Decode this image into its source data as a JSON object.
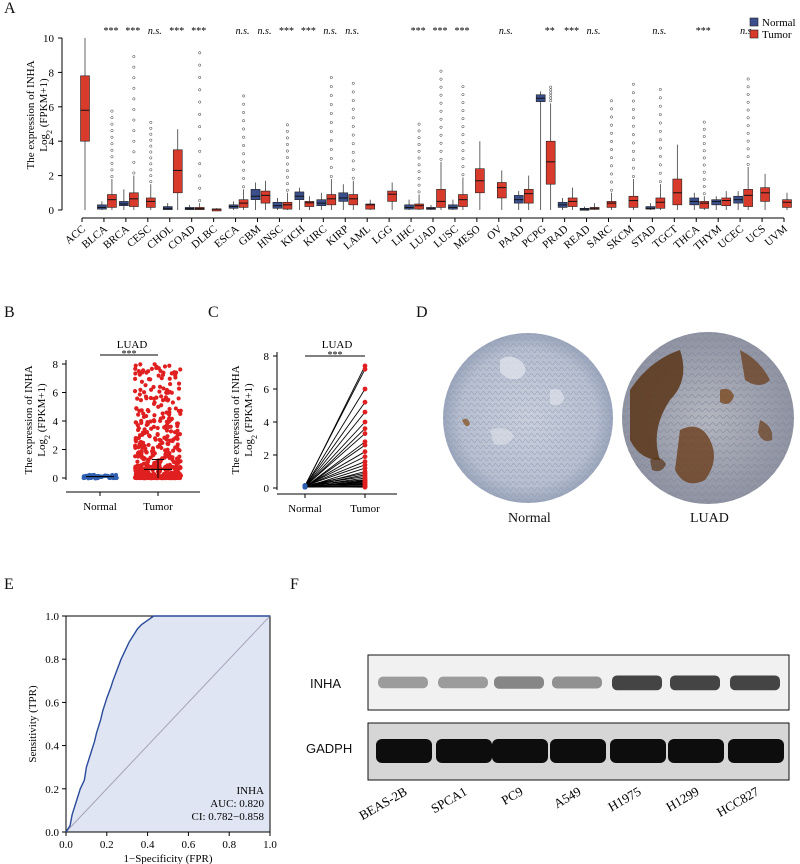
{
  "panel_labels": {
    "a": "A",
    "b": "B",
    "c": "C",
    "d": "D",
    "e": "E",
    "f": "F"
  },
  "chart_data": [
    {
      "panel": "A",
      "type": "box",
      "ylabel_line1": "The expression of INHA",
      "ylabel_line2": "Log",
      "ylabel_sub": "2",
      "ylabel_tail": "(FPKM+1)",
      "ylim": [
        0,
        10
      ],
      "yticks": [
        0,
        2,
        4,
        6,
        8,
        10
      ],
      "legend": {
        "position": "top-right",
        "entries": [
          {
            "name": "Normal",
            "color": "#3b4f8c"
          },
          {
            "name": "Tumor",
            "color": "#d83a2c"
          }
        ]
      },
      "categories": [
        "ACC",
        "BLCA",
        "BRCA",
        "CESC",
        "CHOL",
        "COAD",
        "DLBC",
        "ESCA",
        "GBM",
        "HNSC",
        "KICH",
        "KIRC",
        "KIRP",
        "LAML",
        "LGG",
        "LIHC",
        "LUAD",
        "LUSC",
        "MESO",
        "OV",
        "PAAD",
        "PCPG",
        "PRAD",
        "READ",
        "SARC",
        "SKCM",
        "STAD",
        "TGCT",
        "THCA",
        "THYM",
        "UCEC",
        "UCS",
        "UVM"
      ],
      "significance": [
        "",
        "***",
        "***",
        "n.s.",
        "***",
        "***",
        "",
        "n.s.",
        "n.s.",
        "***",
        "***",
        "n.s.",
        "n.s.",
        "",
        "",
        "***",
        "***",
        "***",
        "",
        "n.s.",
        "",
        "**",
        "***",
        "n.s.",
        "",
        "",
        "n.s.",
        "",
        "***",
        "",
        "n.s.",
        "",
        ""
      ],
      "normal_box": [
        null,
        [
          0.05,
          0.15,
          0.3,
          0.5
        ],
        [
          0.25,
          0.35,
          0.5,
          1.2
        ],
        null,
        [
          0.02,
          0.1,
          0.2,
          0.4
        ],
        [
          0.02,
          0.08,
          0.15,
          0.3
        ],
        null,
        [
          0.1,
          0.2,
          0.3,
          0.5
        ],
        [
          0.6,
          0.8,
          1.2,
          1.6
        ],
        [
          0.1,
          0.25,
          0.45,
          0.7
        ],
        [
          0.6,
          0.8,
          1.05,
          1.3
        ],
        [
          0.25,
          0.4,
          0.6,
          1.0
        ],
        [
          0.5,
          0.7,
          1.0,
          1.5
        ],
        null,
        null,
        [
          0.05,
          0.15,
          0.3,
          0.6
        ],
        [
          0.05,
          0.1,
          0.15,
          0.3
        ],
        [
          0.05,
          0.15,
          0.3,
          0.6
        ],
        null,
        null,
        [
          0.4,
          0.6,
          0.85,
          1.1
        ],
        [
          6.3,
          6.5,
          6.7,
          6.9
        ],
        [
          0.15,
          0.3,
          0.45,
          0.7
        ],
        [
          0.02,
          0.05,
          0.1,
          0.2
        ],
        null,
        null,
        [
          0.05,
          0.1,
          0.2,
          0.4
        ],
        null,
        [
          0.3,
          0.5,
          0.7,
          1.0
        ],
        [
          0.3,
          0.5,
          0.6,
          0.8
        ],
        [
          0.4,
          0.6,
          0.8,
          1.1
        ],
        null,
        null
      ],
      "tumor_box": [
        [
          4.0,
          5.6,
          7.8,
          10.0
        ],
        [
          0.15,
          0.4,
          0.9,
          1.8
        ],
        [
          0.2,
          0.45,
          1.0,
          2.0
        ],
        [
          0.15,
          0.35,
          0.7,
          1.5
        ],
        [
          1.0,
          1.8,
          3.5,
          4.7
        ],
        [
          0.02,
          0.05,
          0.15,
          0.4
        ],
        [
          0.02,
          0.04,
          0.06,
          0.1
        ],
        [
          0.15,
          0.3,
          0.6,
          1.2
        ],
        [
          0.4,
          0.65,
          1.1,
          1.7
        ],
        [
          0.05,
          0.2,
          0.45,
          1.0
        ],
        [
          0.2,
          0.35,
          0.5,
          0.8
        ],
        [
          0.3,
          0.5,
          0.9,
          1.8
        ],
        [
          0.3,
          0.5,
          0.9,
          1.7
        ],
        [
          0.05,
          0.2,
          0.35,
          0.6
        ],
        [
          0.5,
          0.75,
          1.1,
          1.6
        ],
        [
          0.05,
          0.15,
          0.35,
          0.9
        ],
        [
          0.15,
          0.3,
          1.2,
          2.8
        ],
        [
          0.2,
          0.4,
          0.9,
          1.9
        ],
        [
          1.0,
          1.4,
          2.4,
          4.0
        ],
        [
          0.7,
          1.0,
          1.6,
          2.3
        ],
        [
          0.4,
          0.7,
          1.2,
          2.0
        ],
        [
          1.5,
          2.7,
          4.0,
          6.2
        ],
        [
          0.2,
          0.4,
          0.7,
          1.3
        ],
        [
          0.05,
          0.08,
          0.15,
          0.4
        ],
        [
          0.15,
          0.3,
          0.5,
          1.0
        ],
        [
          0.15,
          0.4,
          0.8,
          1.8
        ],
        [
          0.1,
          0.3,
          0.7,
          1.5
        ],
        [
          0.3,
          0.8,
          1.8,
          3.8
        ],
        [
          0.1,
          0.3,
          0.5,
          0.8
        ],
        [
          0.25,
          0.45,
          0.7,
          1.1
        ],
        [
          0.2,
          0.6,
          1.2,
          2.5
        ],
        [
          0.5,
          0.75,
          1.3,
          2.1
        ],
        [
          0.15,
          0.35,
          0.6,
          1.0
        ]
      ],
      "tumor_median": [
        5.8,
        0.6,
        0.65,
        0.5,
        2.3,
        0.08,
        0.05,
        0.4,
        0.85,
        0.3,
        0.42,
        0.65,
        0.65,
        0.3,
        0.92,
        0.25,
        0.5,
        0.6,
        1.7,
        1.3,
        0.95,
        2.8,
        0.5,
        0.1,
        0.4,
        0.55,
        0.45,
        1.0,
        0.4,
        0.55,
        0.85,
        1.0,
        0.45
      ],
      "tumor_outlier_max": [
        null,
        6.0,
        9.5,
        5.2,
        null,
        9.3,
        null,
        6.8,
        null,
        5.2,
        null,
        8.0,
        7.6,
        null,
        null,
        5.3,
        8.2,
        7.3,
        null,
        null,
        null,
        7.3,
        null,
        null,
        6.5,
        7.5,
        7.2,
        null,
        5.5,
        null,
        7.7,
        null,
        null
      ]
    },
    {
      "panel": "B",
      "type": "scatter",
      "title": "LUAD",
      "significance": "***",
      "ylabel_line1": "The expression of INHA",
      "ylabel_line2": "Log",
      "ylabel_sub": "2",
      "ylabel_tail": "(FPKM+1)",
      "categories": [
        "Normal",
        "Tumor"
      ],
      "ylim": [
        0,
        8
      ],
      "yticks": [
        0,
        2,
        4,
        6,
        8
      ],
      "series": [
        {
          "name": "Normal",
          "color": "#2f5fb0",
          "mean": 0.1,
          "count": 59
        },
        {
          "name": "Tumor",
          "color": "#e02020",
          "mean": 0.6,
          "max": 8.2,
          "count": 535
        }
      ]
    },
    {
      "panel": "C",
      "type": "line",
      "title": "LUAD",
      "significance": "***",
      "ylabel_line1": "The expression of INHA",
      "ylabel_line2": "Log",
      "ylabel_sub": "2",
      "ylabel_tail": "(FPKM+1)",
      "categories": [
        "Normal",
        "Tumor"
      ],
      "ylim": [
        0,
        8
      ],
      "yticks": [
        0,
        2,
        4,
        6,
        8
      ],
      "paired_tumor_values": [
        7.4,
        7.2,
        6.0,
        5.2,
        4.6,
        4.0,
        3.6,
        3.3,
        2.8,
        2.6,
        2.2,
        1.9,
        1.6,
        1.4,
        1.2,
        1.0,
        0.9,
        0.8,
        0.7,
        0.6,
        0.5,
        0.45,
        0.4,
        0.35,
        0.3,
        0.25,
        0.2,
        0.15,
        0.1,
        0.08,
        0.05
      ],
      "normal_value": 0.1
    },
    {
      "panel": "E",
      "type": "line",
      "xlabel": "1−Specificity (FPR)",
      "ylabel": "Sensitivity (TPR)",
      "xlim": [
        0,
        1
      ],
      "ylim": [
        0,
        1
      ],
      "xticks": [
        "0.0",
        "0.2",
        "0.4",
        "0.6",
        "0.8",
        "1.0"
      ],
      "yticks": [
        "0.0",
        "0.2",
        "0.4",
        "0.6",
        "0.8",
        "1.0"
      ],
      "annotation": [
        "INHA",
        "AUC: 0.820",
        "CI: 0.782−0.858"
      ],
      "roc_points": [
        [
          0,
          0
        ],
        [
          0.02,
          0.03
        ],
        [
          0.03,
          0.08
        ],
        [
          0.05,
          0.14
        ],
        [
          0.07,
          0.2
        ],
        [
          0.09,
          0.24
        ],
        [
          0.1,
          0.3
        ],
        [
          0.12,
          0.36
        ],
        [
          0.14,
          0.42
        ],
        [
          0.15,
          0.46
        ],
        [
          0.17,
          0.52
        ],
        [
          0.18,
          0.56
        ],
        [
          0.2,
          0.62
        ],
        [
          0.22,
          0.67
        ],
        [
          0.23,
          0.7
        ],
        [
          0.25,
          0.75
        ],
        [
          0.27,
          0.8
        ],
        [
          0.29,
          0.84
        ],
        [
          0.31,
          0.88
        ],
        [
          0.33,
          0.91
        ],
        [
          0.35,
          0.94
        ],
        [
          0.37,
          0.96
        ],
        [
          0.4,
          0.98
        ],
        [
          0.43,
          1.0
        ],
        [
          0.6,
          1.0
        ],
        [
          1.0,
          1.0
        ]
      ]
    }
  ],
  "ihc": {
    "left_label": "Normal",
    "right_label": "LUAD"
  },
  "blot": {
    "rows": [
      "INHA",
      "GADPH"
    ],
    "lanes": [
      "BEAS-2B",
      "SPCA1",
      "PC9",
      "A549",
      "H1975",
      "H1299",
      "HCC827"
    ],
    "inha_intensity": [
      0.45,
      0.45,
      0.55,
      0.5,
      0.85,
      0.85,
      0.85
    ]
  }
}
